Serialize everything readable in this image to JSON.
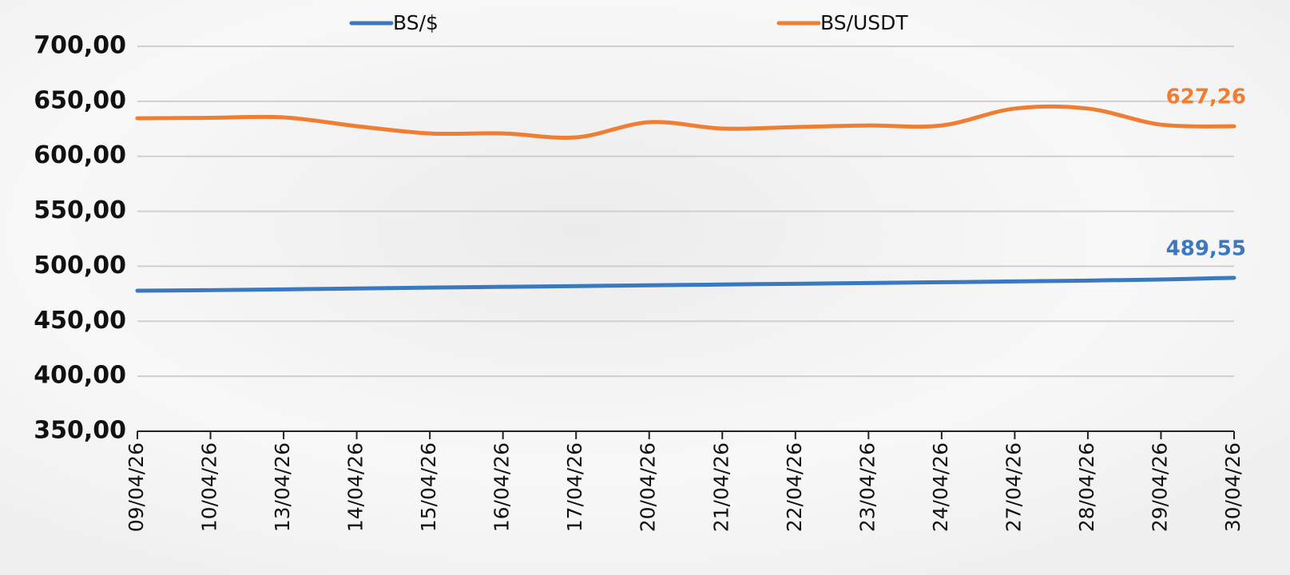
{
  "chart_data": {
    "type": "line",
    "categories": [
      "09/04/26",
      "10/04/26",
      "13/04/26",
      "14/04/26",
      "15/04/26",
      "16/04/26",
      "17/04/26",
      "20/04/26",
      "21/04/26",
      "22/04/26",
      "23/04/26",
      "24/04/26",
      "27/04/26",
      "28/04/26",
      "29/04/26",
      "30/04/26"
    ],
    "series": [
      {
        "name": "BS/$",
        "color": "#3a78bf",
        "values": [
          477.8,
          478.3,
          479,
          479.8,
          480.6,
          481.3,
          482,
          482.7,
          483.4,
          484.1,
          484.8,
          485.5,
          486.2,
          487,
          488,
          489.55
        ],
        "value_labels": [
          null,
          null,
          null,
          null,
          null,
          null,
          null,
          null,
          null,
          null,
          null,
          null,
          null,
          null,
          null,
          "489,55"
        ]
      },
      {
        "name": "BS/USDT",
        "color": "#ef7d32",
        "values": [
          634.6,
          635,
          635.4,
          627.4,
          620.8,
          620.8,
          617.2,
          631,
          625.2,
          626.6,
          628,
          628,
          643.4,
          643.4,
          628.8,
          627.26
        ],
        "value_labels": [
          null,
          null,
          null,
          null,
          null,
          null,
          null,
          null,
          null,
          null,
          null,
          null,
          null,
          null,
          null,
          "627,26"
        ]
      }
    ],
    "ylim": [
      350,
      700
    ],
    "yticks": [
      {
        "value": 350,
        "label": "350,00"
      },
      {
        "value": 400,
        "label": "400,00"
      },
      {
        "value": 450,
        "label": "450,00"
      },
      {
        "value": 500,
        "label": "500,00"
      },
      {
        "value": 550,
        "label": "550,00"
      },
      {
        "value": 600,
        "label": "600,00"
      },
      {
        "value": 650,
        "label": "650,00"
      },
      {
        "value": 700,
        "label": "700,00"
      }
    ],
    "grid": true,
    "legend": "top"
  }
}
